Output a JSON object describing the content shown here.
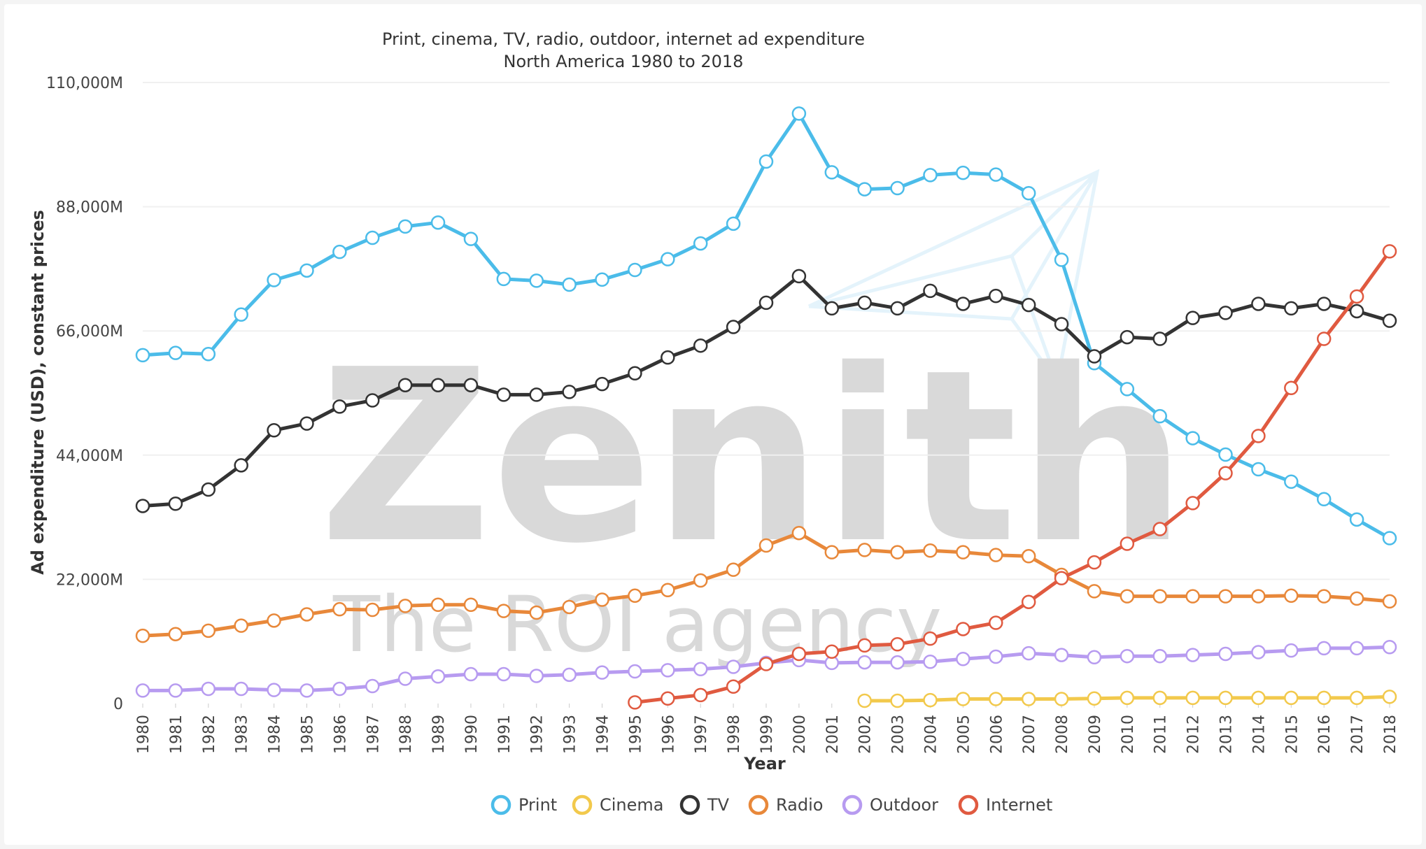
{
  "chart_data": {
    "type": "line",
    "title": "Print, cinema, TV, radio, outdoor, internet ad expenditure",
    "subtitle": "North America 1980 to 2018",
    "xlabel": "Year",
    "ylabel": "Ad expenditure (USD), constant prices",
    "ylim": [
      0,
      110000
    ],
    "yticks": [
      0,
      22000,
      44000,
      66000,
      88000,
      110000
    ],
    "ytick_labels": [
      "0",
      "22,000M",
      "44,000M",
      "66,000M",
      "88,000M",
      "110,000M"
    ],
    "grid": true,
    "legend_position": "bottom",
    "x": [
      1980,
      1981,
      1982,
      1983,
      1984,
      1985,
      1986,
      1987,
      1988,
      1989,
      1990,
      1991,
      1992,
      1993,
      1994,
      1995,
      1996,
      1997,
      1998,
      1999,
      2000,
      2001,
      2002,
      2003,
      2004,
      2005,
      2006,
      2007,
      2008,
      2009,
      2010,
      2011,
      2012,
      2013,
      2014,
      2015,
      2016,
      2017,
      2018
    ],
    "series": [
      {
        "name": "Print",
        "color": "#4bbce9",
        "values": [
          61700,
          62100,
          61900,
          68900,
          75000,
          76700,
          80000,
          82500,
          84500,
          85200,
          82300,
          75200,
          74900,
          74200,
          75100,
          76800,
          78700,
          81500,
          85000,
          96000,
          104500,
          94100,
          91100,
          91300,
          93600,
          94000,
          93700,
          90400,
          78600,
          60300,
          55700,
          50900,
          47000,
          44100,
          41500,
          39300,
          36200,
          32600,
          29300
        ]
      },
      {
        "name": "Cinema",
        "color": "#f2c94c",
        "values": [
          null,
          null,
          null,
          null,
          null,
          null,
          null,
          null,
          null,
          null,
          null,
          null,
          null,
          null,
          null,
          null,
          null,
          null,
          null,
          null,
          null,
          null,
          500,
          500,
          600,
          800,
          800,
          800,
          800,
          900,
          1000,
          1000,
          1000,
          1000,
          1000,
          1000,
          1000,
          1000,
          1200
        ]
      },
      {
        "name": "TV",
        "color": "#333333",
        "values": [
          35000,
          35400,
          37900,
          42200,
          48400,
          49600,
          52600,
          53700,
          56400,
          56400,
          56400,
          54700,
          54700,
          55200,
          56600,
          58500,
          61300,
          63400,
          66700,
          71000,
          75700,
          70000,
          71000,
          70000,
          73100,
          70800,
          72200,
          70600,
          67200,
          61500,
          64900,
          64600,
          68300,
          69200,
          70800,
          70000,
          70800,
          69500,
          67800
        ]
      },
      {
        "name": "Radio",
        "color": "#e8883a",
        "values": [
          12000,
          12300,
          12900,
          13800,
          14700,
          15800,
          16700,
          16600,
          17300,
          17500,
          17500,
          16400,
          16100,
          17100,
          18400,
          19100,
          20100,
          21800,
          23700,
          28000,
          30200,
          26800,
          27200,
          26800,
          27100,
          26800,
          26300,
          26100,
          22800,
          19900,
          19000,
          19000,
          19000,
          19000,
          19000,
          19100,
          19000,
          18600,
          18100
        ]
      },
      {
        "name": "Outdoor",
        "color": "#b79bf0",
        "values": [
          2300,
          2300,
          2600,
          2600,
          2400,
          2300,
          2600,
          3100,
          4400,
          4800,
          5200,
          5200,
          4900,
          5100,
          5500,
          5700,
          5900,
          6100,
          6500,
          7200,
          7700,
          7200,
          7300,
          7300,
          7400,
          7900,
          8300,
          8900,
          8600,
          8200,
          8400,
          8400,
          8600,
          8800,
          9100,
          9400,
          9800,
          9800,
          10000
        ]
      },
      {
        "name": "Internet",
        "color": "#e05a40",
        "values": [
          null,
          null,
          null,
          null,
          null,
          null,
          null,
          null,
          null,
          null,
          null,
          null,
          null,
          null,
          null,
          200,
          900,
          1500,
          3000,
          7000,
          8800,
          9200,
          10300,
          10500,
          11500,
          13200,
          14300,
          18000,
          22200,
          25000,
          28300,
          30900,
          35500,
          40800,
          47400,
          55900,
          64600,
          72100,
          80100
        ]
      }
    ]
  }
}
